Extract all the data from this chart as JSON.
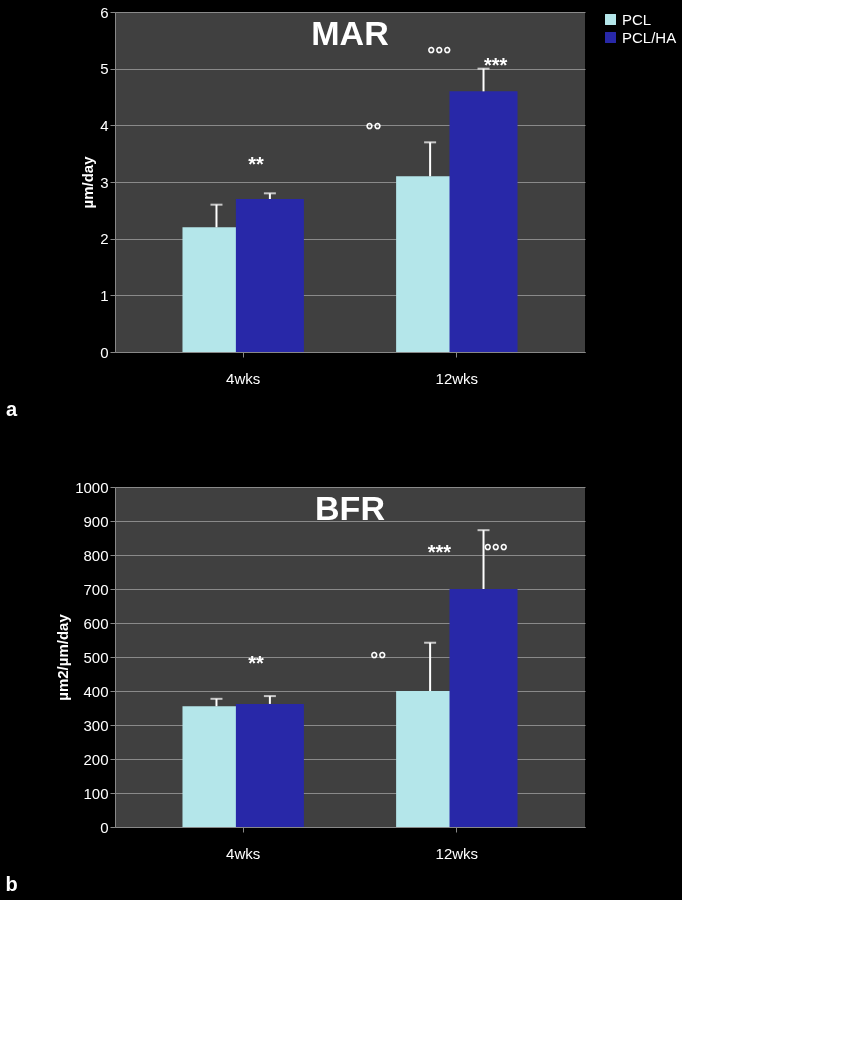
{
  "chart_data": [
    {
      "type": "bar",
      "title": "MAR",
      "ylabel": "µm/day",
      "categories": [
        "4wks",
        "12wks"
      ],
      "series": [
        {
          "name": "PCL",
          "color": "#b4e6ea",
          "values": [
            2.2,
            3.1
          ],
          "errors": [
            [
              2.2,
              2.6
            ],
            [
              3.1,
              3.7
            ]
          ]
        },
        {
          "name": "PCL/HA",
          "color": "#2828a8",
          "values": [
            2.7,
            4.6
          ],
          "errors": [
            [
              2.7,
              2.8
            ],
            [
              4.6,
              5.0
            ]
          ]
        }
      ],
      "ylim": [
        0,
        6
      ],
      "yticks": [
        0,
        1,
        2,
        3,
        4,
        5,
        6
      ],
      "grid": "y",
      "legend": "right",
      "annotations": [
        "**",
        "°°",
        "°°°",
        "***",
        "a"
      ]
    },
    {
      "type": "bar",
      "title": "BFR",
      "ylabel": "µm2/µm/day",
      "categories": [
        "4wks",
        "12wks"
      ],
      "series": [
        {
          "name": "PCL",
          "color": "#b4e6ea",
          "values": [
            355,
            400
          ],
          "errors": [
            [
              355,
              377
            ],
            [
              400,
              542
            ]
          ]
        },
        {
          "name": "PCL/HA",
          "color": "#2828a8",
          "values": [
            362,
            700
          ],
          "errors": [
            [
              362,
              385
            ],
            [
              700,
              873
            ]
          ]
        }
      ],
      "ylim": [
        0,
        1000
      ],
      "yticks": [
        0,
        100,
        200,
        300,
        400,
        500,
        600,
        700,
        800,
        900,
        1000
      ],
      "grid": "y",
      "legend": "right",
      "annotations": [
        "**",
        "°°",
        "***",
        "°°°",
        "b"
      ]
    }
  ]
}
